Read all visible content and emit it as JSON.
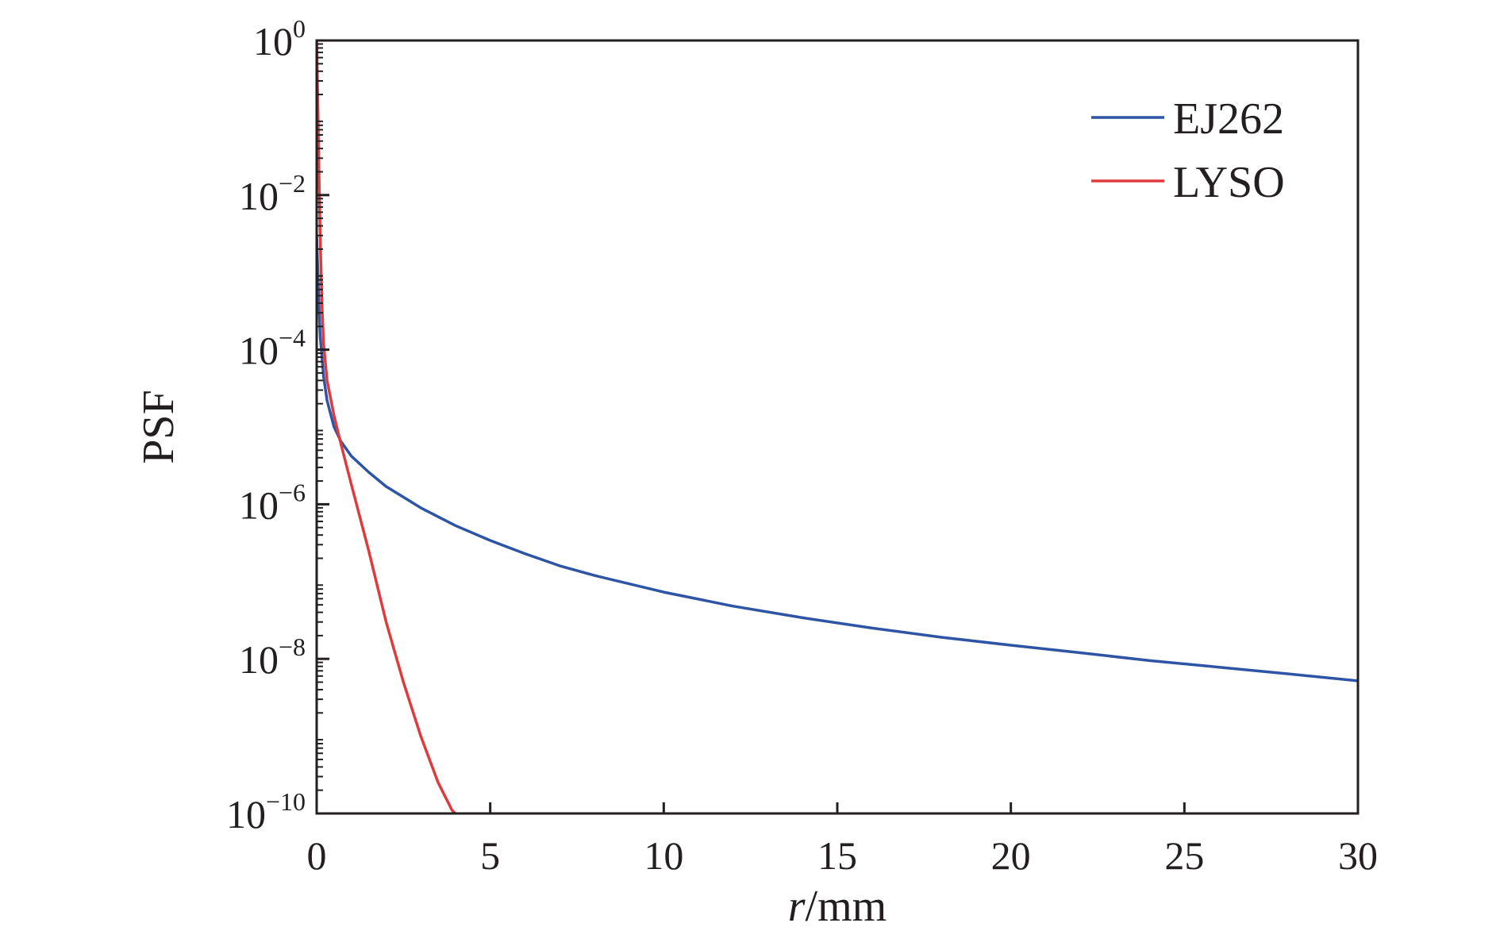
{
  "chart_data": {
    "type": "line",
    "xlabel_italic": "r",
    "xlabel_rest": "/mm",
    "ylabel": "PSF",
    "xlim": [
      0,
      30
    ],
    "ylim": [
      1e-10,
      1
    ],
    "yscale": "log",
    "grid": false,
    "legend_position": "top-right",
    "x_ticks": [
      "0",
      "5",
      "10",
      "15",
      "20",
      "25",
      "30"
    ],
    "y_ticks": [
      {
        "base": "10",
        "exp": "0",
        "value": 1
      },
      {
        "base": "10",
        "exp": "−2",
        "value": 0.01
      },
      {
        "base": "10",
        "exp": "−4",
        "value": 0.0001
      },
      {
        "base": "10",
        "exp": "−6",
        "value": 1e-06
      },
      {
        "base": "10",
        "exp": "−8",
        "value": 1e-08
      },
      {
        "base": "10",
        "exp": "−10",
        "value": 1e-10
      }
    ],
    "series": [
      {
        "name": "EJ262",
        "color": "#2e55a5",
        "points": [
          [
            0.0,
            0.003
          ],
          [
            0.05,
            0.0006
          ],
          [
            0.1,
            0.00015
          ],
          [
            0.2,
            4.5e-05
          ],
          [
            0.3,
            2.2e-05
          ],
          [
            0.5,
            1e-05
          ],
          [
            0.7,
            6.5e-06
          ],
          [
            1.0,
            4.2e-06
          ],
          [
            1.5,
            2.6e-06
          ],
          [
            2.0,
            1.7e-06
          ],
          [
            3.0,
            9e-07
          ],
          [
            4.0,
            5.3e-07
          ],
          [
            5.0,
            3.4e-07
          ],
          [
            6.0,
            2.3e-07
          ],
          [
            7.0,
            1.6e-07
          ],
          [
            8.0,
            1.2e-07
          ],
          [
            10.0,
            7.3e-08
          ],
          [
            12.0,
            4.8e-08
          ],
          [
            14.0,
            3.4e-08
          ],
          [
            16.0,
            2.5e-08
          ],
          [
            18.0,
            1.9e-08
          ],
          [
            20.0,
            1.5e-08
          ],
          [
            22.0,
            1.2e-08
          ],
          [
            24.0,
            9.5e-09
          ],
          [
            26.0,
            7.8e-09
          ],
          [
            28.0,
            6.4e-09
          ],
          [
            30.0,
            5.2e-09
          ]
        ]
      },
      {
        "name": "LYSO",
        "color": "#e03a3e",
        "points": [
          [
            0.0,
            1.0
          ],
          [
            0.03,
            0.2
          ],
          [
            0.06,
            0.03
          ],
          [
            0.1,
            0.003
          ],
          [
            0.15,
            0.0004
          ],
          [
            0.2,
            0.00012
          ],
          [
            0.3,
            4e-05
          ],
          [
            0.5,
            1.4e-05
          ],
          [
            0.7,
            6e-06
          ],
          [
            1.0,
            1.8e-06
          ],
          [
            1.5,
            2.5e-07
          ],
          [
            2.0,
            3e-08
          ],
          [
            2.5,
            5e-09
          ],
          [
            3.0,
            1e-09
          ],
          [
            3.5,
            2.5e-10
          ],
          [
            3.9,
            1.1e-10
          ],
          [
            4.0,
            1e-10
          ]
        ]
      }
    ]
  }
}
